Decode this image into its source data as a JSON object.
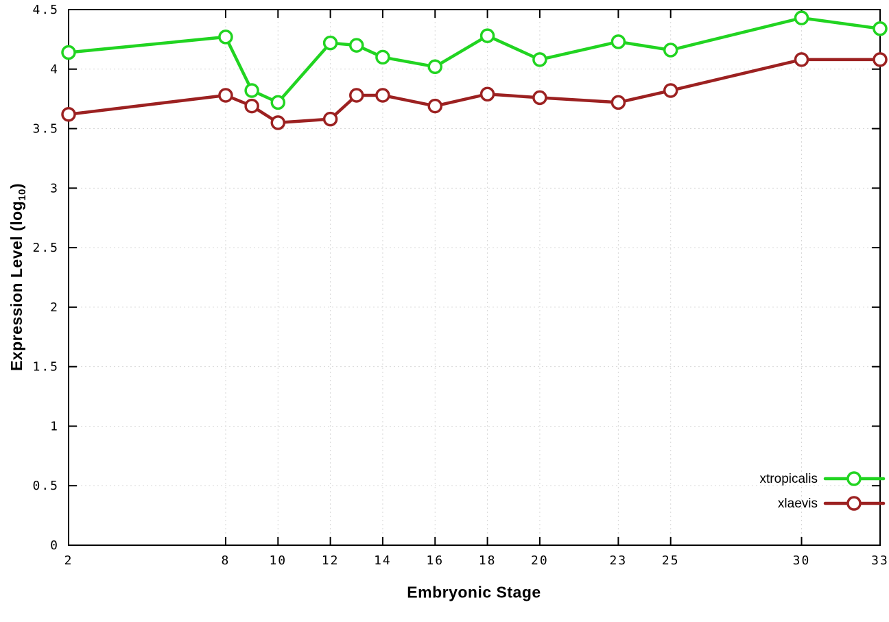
{
  "chart_data": {
    "type": "line",
    "title": "",
    "xlabel": "Embryonic Stage",
    "ylabel": "Expression Level (log10)",
    "ylabel_parts": {
      "main": "Expression Level (log",
      "sub": "10",
      "close": ")"
    },
    "x": [
      2,
      8,
      9,
      10,
      12,
      13,
      14,
      16,
      18,
      20,
      23,
      25,
      30,
      33
    ],
    "x_ticks": [
      2,
      8,
      10,
      12,
      14,
      16,
      18,
      20,
      23,
      25,
      30,
      33
    ],
    "y_ticks": [
      0,
      0.5,
      1,
      1.5,
      2,
      2.5,
      3,
      3.5,
      4,
      4.5
    ],
    "xlim": [
      2,
      33
    ],
    "ylim": [
      0,
      4.5
    ],
    "grid": true,
    "legend_position": "bottom-right",
    "series": [
      {
        "name": "xtropicalis",
        "color": "#21d421",
        "values": [
          4.14,
          4.27,
          3.82,
          3.72,
          4.22,
          4.2,
          4.1,
          4.02,
          4.28,
          4.08,
          4.23,
          4.16,
          4.43,
          4.34
        ]
      },
      {
        "name": "xlaevis",
        "color": "#9c2121",
        "values": [
          3.62,
          3.78,
          3.69,
          3.55,
          3.58,
          3.78,
          3.78,
          3.69,
          3.79,
          3.76,
          3.72,
          3.82,
          4.08,
          4.08
        ]
      }
    ],
    "axis_color": "#000000",
    "grid_color": "#d8d8d8"
  }
}
